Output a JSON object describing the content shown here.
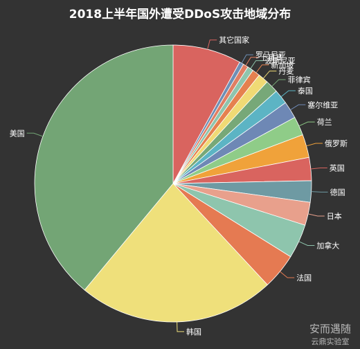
{
  "chart_data": {
    "type": "pie",
    "title": "2018上半年国外遭受DDoS攻击地域分布",
    "categories": [
      "其它国家",
      "罗马尼亚",
      "土耳其",
      "波斯尼亚",
      "新加坡",
      "丹麦",
      "菲律宾",
      "泰国",
      "塞尔维亚",
      "荷兰",
      "俄罗斯",
      "英国",
      "德国",
      "日本",
      "加拿大",
      "法国",
      "韩国",
      "美国"
    ],
    "values": [
      8.0,
      0.5,
      0.6,
      0.7,
      0.9,
      1.2,
      1.5,
      1.7,
      2.0,
      2.2,
      2.7,
      2.7,
      2.5,
      2.7,
      4.0,
      4.2,
      23.0,
      39.0
    ],
    "colors": [
      "#d9645f",
      "#6f8fb5",
      "#e07e63",
      "#8ec5ad",
      "#e5814f",
      "#f0da75",
      "#77a878",
      "#5cb4c4",
      "#6e88b5",
      "#8fcc88",
      "#f0a23a",
      "#d9645f",
      "#6e9aa3",
      "#e8a08c",
      "#8ec5ad",
      "#e57a52",
      "#efe07b",
      "#73a575"
    ]
  },
  "watermark": {
    "line1": "安而遇随",
    "line2": "云鼎实验室"
  }
}
